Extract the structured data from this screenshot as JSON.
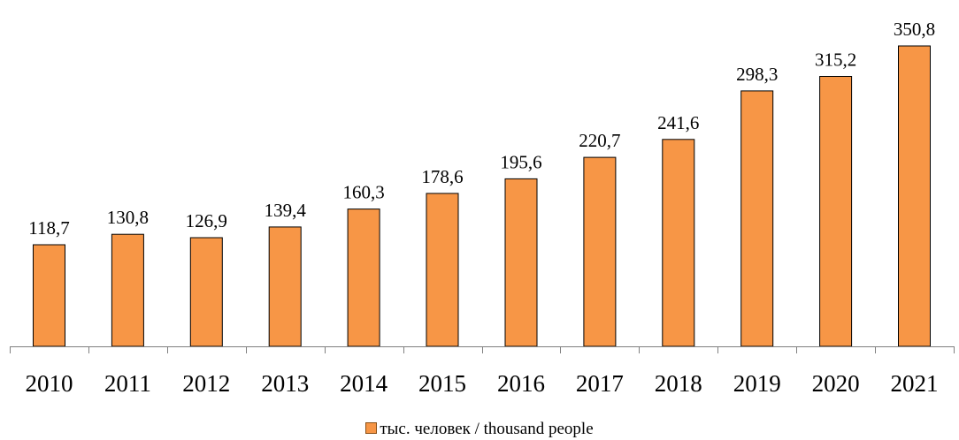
{
  "chart_data": {
    "type": "bar",
    "categories": [
      "2010",
      "2011",
      "2012",
      "2013",
      "2014",
      "2015",
      "2016",
      "2017",
      "2018",
      "2019",
      "2020",
      "2021"
    ],
    "series": [
      {
        "name": "тыс. человек / thousand people",
        "values": [
          118.7,
          130.8,
          126.9,
          139.4,
          160.3,
          178.6,
          195.6,
          220.7,
          241.6,
          298.3,
          315.2,
          350.8
        ],
        "labels": [
          "118,7",
          "130,8",
          "126,9",
          "139,4",
          "160,3",
          "178,6",
          "195,6",
          "220,7",
          "241,6",
          "298,3",
          "315,2",
          "350,8"
        ]
      }
    ],
    "title": "",
    "xlabel": "",
    "ylabel": "",
    "ylim": [
      0,
      350.8
    ],
    "grid": false,
    "y_axis_visible": false,
    "data_labels": true,
    "legend_position": "bottom"
  },
  "colors": {
    "bar_fill": "#F79646",
    "bar_stroke": "#000000",
    "axis": "#808080",
    "text": "#000000"
  }
}
